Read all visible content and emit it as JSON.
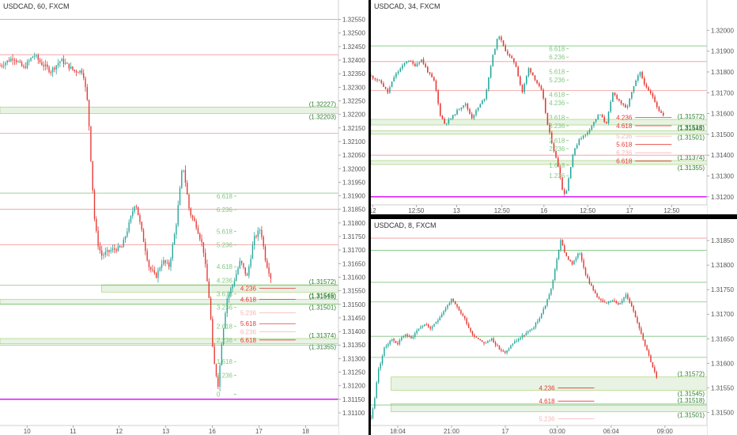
{
  "colors": {
    "up": "#26a69a",
    "down": "#e53935",
    "support_line": "#7cc47f",
    "resistance_line": "#ef9a9a",
    "zone_fill": "#e8f3e4",
    "zone_border": "#9ccc65",
    "magenta": "#d500f9",
    "fib_green": "#7fc97f",
    "fib_red": "#e53935",
    "fib_pink": "#f4b6b6",
    "zone_label": "#2e7d32"
  },
  "chart_data": [
    {
      "id": "p1",
      "type": "candlestick",
      "title": "USDCAD, 60, FXCM",
      "ylim": [
        1.31065,
        1.32575
      ],
      "y_ticks": [
        "1.32550",
        "1.32500",
        "1.32450",
        "1.32400",
        "1.32350",
        "1.32300",
        "1.32250",
        "1.32200",
        "1.32150",
        "1.32100",
        "1.32050",
        "1.32000",
        "1.31950",
        "1.31900",
        "1.31850",
        "1.31800",
        "1.31750",
        "1.31700",
        "1.31650",
        "1.31600",
        "1.31550",
        "1.31500",
        "1.31450",
        "1.31400",
        "1.31350",
        "1.31300",
        "1.31250",
        "1.31200",
        "1.31150",
        "1.31100"
      ],
      "x_ticks": [
        {
          "label": "10",
          "pos": 0.08
        },
        {
          "label": "11",
          "pos": 0.216
        },
        {
          "label": "12",
          "pos": 0.352
        },
        {
          "label": "13",
          "pos": 0.49
        },
        {
          "label": "16",
          "pos": 0.627
        },
        {
          "label": "17",
          "pos": 0.765
        },
        {
          "label": "18",
          "pos": 0.903
        }
      ],
      "hlines": [
        {
          "y": 1.3255,
          "kind": "resistance"
        },
        {
          "y": 1.3242,
          "kind": "resistance"
        },
        {
          "y": 1.3213,
          "kind": "resistance"
        },
        {
          "y": 1.3191,
          "kind": "support"
        },
        {
          "y": 1.3185,
          "kind": "resistance"
        },
        {
          "y": 1.3172,
          "kind": "resistance"
        },
        {
          "y": 1.3157,
          "kind": "support"
        },
        {
          "y": 1.315,
          "kind": "support"
        },
        {
          "y": 1.3135,
          "kind": "support"
        },
        {
          "y": 1.3115,
          "kind": "magenta"
        }
      ],
      "zones": [
        {
          "y1": 1.32203,
          "y2": 1.32227,
          "x_from": 0.0,
          "labels": [
            "(1.32227)",
            "(1.32203)"
          ]
        },
        {
          "y1": 1.31545,
          "y2": 1.31572,
          "x_from": 0.3,
          "labels": [
            "(1.31572)",
            "(1.31545)"
          ]
        },
        {
          "y1": 1.31501,
          "y2": 1.31518,
          "x_from": 0.0,
          "labels": [
            "(1.31518)",
            "(1.31501)"
          ]
        },
        {
          "y1": 1.31355,
          "y2": 1.31374,
          "x_from": 0.0,
          "labels": [
            "(1.31374)",
            "(1.31355)"
          ]
        }
      ],
      "fib": [
        {
          "label": "6.618",
          "y": 1.3189,
          "x": 0.64,
          "color": "green"
        },
        {
          "label": "6.236",
          "y": 1.3184,
          "x": 0.64,
          "color": "green"
        },
        {
          "label": "5.618",
          "y": 1.3176,
          "x": 0.64,
          "color": "green"
        },
        {
          "label": "5.236",
          "y": 1.3171,
          "x": 0.64,
          "color": "green"
        },
        {
          "label": "4.618",
          "y": 1.3163,
          "x": 0.64,
          "color": "green"
        },
        {
          "label": "4.236",
          "y": 1.3158,
          "x": 0.64,
          "color": "green"
        },
        {
          "label": "3.618",
          "y": 1.3153,
          "x": 0.64,
          "color": "green"
        },
        {
          "label": "3.236",
          "y": 1.3148,
          "x": 0.64,
          "color": "green"
        },
        {
          "label": "2.618",
          "y": 1.3141,
          "x": 0.64,
          "color": "green"
        },
        {
          "label": "2.236",
          "y": 1.3136,
          "x": 0.64,
          "color": "green"
        },
        {
          "label": "1.618",
          "y": 1.3128,
          "x": 0.64,
          "color": "green"
        },
        {
          "label": "1.236",
          "y": 1.3123,
          "x": 0.64,
          "color": "green"
        },
        {
          "label": "0",
          "y": 1.3116,
          "x": 0.64,
          "color": "green"
        },
        {
          "label": "4.236",
          "y": 1.3155,
          "x": 0.71,
          "color": "red"
        },
        {
          "label": "4.618",
          "y": 1.3151,
          "x": 0.71,
          "color": "red"
        },
        {
          "label": "5.236",
          "y": 1.3146,
          "x": 0.71,
          "color": "pink"
        },
        {
          "label": "5.618",
          "y": 1.3142,
          "x": 0.71,
          "color": "red"
        },
        {
          "label": "6.236",
          "y": 1.3139,
          "x": 0.71,
          "color": "pink"
        },
        {
          "label": "6.618",
          "y": 1.3136,
          "x": 0.71,
          "color": "red"
        }
      ],
      "path": [
        [
          0,
          1.3238
        ],
        [
          0.04,
          1.3241
        ],
        [
          0.07,
          1.3237
        ],
        [
          0.1,
          1.3242
        ],
        [
          0.12,
          1.3239
        ],
        [
          0.15,
          1.3236
        ],
        [
          0.18,
          1.324
        ],
        [
          0.22,
          1.3236
        ],
        [
          0.245,
          1.3236
        ],
        [
          0.26,
          1.3223
        ],
        [
          0.27,
          1.32
        ],
        [
          0.28,
          1.318
        ],
        [
          0.29,
          1.3172
        ],
        [
          0.3,
          1.3168
        ],
        [
          0.33,
          1.317
        ],
        [
          0.36,
          1.3171
        ],
        [
          0.38,
          1.3179
        ],
        [
          0.4,
          1.3188
        ],
        [
          0.42,
          1.3176
        ],
        [
          0.44,
          1.3164
        ],
        [
          0.46,
          1.316
        ],
        [
          0.48,
          1.3166
        ],
        [
          0.5,
          1.3164
        ],
        [
          0.52,
          1.3179
        ],
        [
          0.54,
          1.3202
        ],
        [
          0.56,
          1.3184
        ],
        [
          0.58,
          1.3179
        ],
        [
          0.6,
          1.3171
        ],
        [
          0.62,
          1.315
        ],
        [
          0.63,
          1.313
        ],
        [
          0.645,
          1.312
        ],
        [
          0.655,
          1.3136
        ],
        [
          0.67,
          1.3152
        ],
        [
          0.69,
          1.3158
        ],
        [
          0.71,
          1.3166
        ],
        [
          0.73,
          1.316
        ],
        [
          0.75,
          1.3174
        ],
        [
          0.77,
          1.3178
        ],
        [
          0.785,
          1.3166
        ],
        [
          0.8,
          1.316
        ]
      ]
    },
    {
      "id": "p2",
      "type": "candlestick",
      "title": "USDCAD, 34, FXCM",
      "ylim": [
        1.31165,
        1.32085
      ],
      "y_ticks": [
        "1.32000",
        "1.31900",
        "1.31800",
        "1.31700",
        "1.31600",
        "1.31500",
        "1.31400",
        "1.31300",
        "1.31200"
      ],
      "x_ticks": [
        {
          "label": "12",
          "pos": 0.005
        },
        {
          "label": "12:50",
          "pos": 0.135
        },
        {
          "label": "13",
          "pos": 0.255
        },
        {
          "label": "12:50",
          "pos": 0.39
        },
        {
          "label": "16",
          "pos": 0.515
        },
        {
          "label": "12:50",
          "pos": 0.645
        },
        {
          "label": "17",
          "pos": 0.77
        },
        {
          "label": "12:50",
          "pos": 0.895
        }
      ],
      "hlines": [
        {
          "y": 1.31925,
          "kind": "support"
        },
        {
          "y": 1.3185,
          "kind": "resistance"
        },
        {
          "y": 1.3171,
          "kind": "resistance"
        },
        {
          "y": 1.314,
          "kind": "resistance"
        },
        {
          "y": 1.312,
          "kind": "magenta"
        }
      ],
      "zones": [
        {
          "y1": 1.31545,
          "y2": 1.31572,
          "x_from": 0.0,
          "labels": [
            "(1.31572)",
            "(1.31545)"
          ]
        },
        {
          "y1": 1.31501,
          "y2": 1.31518,
          "x_from": 0.0,
          "labels": [
            "(1.31518)",
            "(1.31501)"
          ]
        },
        {
          "y1": 1.31355,
          "y2": 1.31374,
          "x_from": 0.0,
          "labels": [
            "(1.31374)",
            "(1.31355)"
          ]
        }
      ],
      "fib": [
        {
          "label": "6.618",
          "y": 1.319,
          "x": 0.53,
          "color": "green"
        },
        {
          "label": "6.236",
          "y": 1.3186,
          "x": 0.53,
          "color": "green"
        },
        {
          "label": "5.618",
          "y": 1.3179,
          "x": 0.53,
          "color": "green"
        },
        {
          "label": "5.236",
          "y": 1.3175,
          "x": 0.53,
          "color": "green"
        },
        {
          "label": "4.618",
          "y": 1.3168,
          "x": 0.53,
          "color": "green"
        },
        {
          "label": "4.236",
          "y": 1.3164,
          "x": 0.53,
          "color": "green"
        },
        {
          "label": "3.618",
          "y": 1.3157,
          "x": 0.53,
          "color": "green"
        },
        {
          "label": "3.236",
          "y": 1.3153,
          "x": 0.53,
          "color": "green"
        },
        {
          "label": "2.618",
          "y": 1.3146,
          "x": 0.53,
          "color": "green"
        },
        {
          "label": "2.236",
          "y": 1.3142,
          "x": 0.53,
          "color": "green"
        },
        {
          "label": "1.618",
          "y": 1.3134,
          "x": 0.53,
          "color": "green"
        },
        {
          "label": "1.236",
          "y": 1.3129,
          "x": 0.53,
          "color": "green"
        },
        {
          "label": "4.236",
          "y": 1.3157,
          "x": 0.73,
          "color": "red"
        },
        {
          "label": "4.618",
          "y": 1.3153,
          "x": 0.73,
          "color": "red"
        },
        {
          "label": "5.236",
          "y": 1.3148,
          "x": 0.73,
          "color": "pink"
        },
        {
          "label": "5.618",
          "y": 1.3144,
          "x": 0.73,
          "color": "red"
        },
        {
          "label": "6.236",
          "y": 1.314,
          "x": 0.73,
          "color": "pink"
        },
        {
          "label": "6.618",
          "y": 1.3136,
          "x": 0.73,
          "color": "red"
        }
      ],
      "path": [
        [
          0,
          1.3178
        ],
        [
          0.03,
          1.3175
        ],
        [
          0.05,
          1.317
        ],
        [
          0.07,
          1.3178
        ],
        [
          0.09,
          1.3182
        ],
        [
          0.11,
          1.3186
        ],
        [
          0.13,
          1.3183
        ],
        [
          0.15,
          1.3186
        ],
        [
          0.17,
          1.318
        ],
        [
          0.19,
          1.3175
        ],
        [
          0.205,
          1.316
        ],
        [
          0.22,
          1.3155
        ],
        [
          0.24,
          1.3158
        ],
        [
          0.26,
          1.3162
        ],
        [
          0.28,
          1.3165
        ],
        [
          0.3,
          1.3158
        ],
        [
          0.32,
          1.3163
        ],
        [
          0.34,
          1.3168
        ],
        [
          0.36,
          1.3186
        ],
        [
          0.38,
          1.3198
        ],
        [
          0.395,
          1.3192
        ],
        [
          0.41,
          1.3188
        ],
        [
          0.43,
          1.3184
        ],
        [
          0.45,
          1.317
        ],
        [
          0.47,
          1.3182
        ],
        [
          0.49,
          1.3176
        ],
        [
          0.51,
          1.317
        ],
        [
          0.525,
          1.3155
        ],
        [
          0.54,
          1.3145
        ],
        [
          0.56,
          1.3133
        ],
        [
          0.57,
          1.3123
        ],
        [
          0.58,
          1.3121
        ],
        [
          0.6,
          1.314
        ],
        [
          0.62,
          1.3148
        ],
        [
          0.64,
          1.315
        ],
        [
          0.66,
          1.3155
        ],
        [
          0.68,
          1.316
        ],
        [
          0.7,
          1.3155
        ],
        [
          0.72,
          1.317
        ],
        [
          0.74,
          1.3166
        ],
        [
          0.76,
          1.3162
        ],
        [
          0.78,
          1.3172
        ],
        [
          0.8,
          1.318
        ],
        [
          0.82,
          1.3172
        ],
        [
          0.84,
          1.3168
        ],
        [
          0.855,
          1.3162
        ],
        [
          0.87,
          1.3159
        ]
      ]
    },
    {
      "id": "p3",
      "type": "candlestick",
      "title": "USDCAD, 8, FXCM",
      "ylim": [
        1.31478,
        1.31868
      ],
      "y_ticks": [
        "1.31850",
        "1.31800",
        "1.31750",
        "1.31700",
        "1.31650",
        "1.31600",
        "1.31550",
        "1.31500"
      ],
      "x_ticks": [
        {
          "label": "18:04",
          "pos": 0.08
        },
        {
          "label": "21:00",
          "pos": 0.24
        },
        {
          "label": "17",
          "pos": 0.4
        },
        {
          "label": "03:00",
          "pos": 0.555
        },
        {
          "label": "06:04",
          "pos": 0.715
        },
        {
          "label": "09:00",
          "pos": 0.875
        }
      ],
      "hlines": [
        {
          "y": 1.31855,
          "kind": "resistance"
        },
        {
          "y": 1.3183,
          "kind": "support"
        },
        {
          "y": 1.31765,
          "kind": "support"
        },
        {
          "y": 1.31725,
          "kind": "support"
        },
        {
          "y": 1.31655,
          "kind": "support"
        },
        {
          "y": 1.31612,
          "kind": "support"
        },
        {
          "y": 1.31515,
          "kind": "support"
        }
      ],
      "zones": [
        {
          "y1": 1.31545,
          "y2": 1.31572,
          "x_from": 0.06,
          "labels": [
            "(1.31572)",
            "(1.31545)"
          ]
        },
        {
          "y1": 1.31501,
          "y2": 1.31518,
          "x_from": 0.06,
          "labels": [
            "(1.31518)",
            "(1.31501)"
          ]
        }
      ],
      "fib": [
        {
          "label": "4.236",
          "y": 1.31545,
          "x": 0.5,
          "color": "red"
        },
        {
          "label": "4.618",
          "y": 1.31518,
          "x": 0.5,
          "color": "red"
        },
        {
          "label": "5.236",
          "y": 1.31482,
          "x": 0.5,
          "color": "pink"
        }
      ],
      "path": [
        [
          0,
          1.3149
        ],
        [
          0.01,
          1.3152
        ],
        [
          0.02,
          1.3158
        ],
        [
          0.04,
          1.3163
        ],
        [
          0.06,
          1.3165
        ],
        [
          0.08,
          1.3164
        ],
        [
          0.1,
          1.3166
        ],
        [
          0.12,
          1.3165
        ],
        [
          0.14,
          1.3167
        ],
        [
          0.16,
          1.3168
        ],
        [
          0.18,
          1.3167
        ],
        [
          0.2,
          1.3169
        ],
        [
          0.22,
          1.3171
        ],
        [
          0.24,
          1.3173
        ],
        [
          0.26,
          1.3171
        ],
        [
          0.28,
          1.3169
        ],
        [
          0.3,
          1.3166
        ],
        [
          0.32,
          1.3165
        ],
        [
          0.34,
          1.3164
        ],
        [
          0.36,
          1.3165
        ],
        [
          0.38,
          1.3163
        ],
        [
          0.4,
          1.3162
        ],
        [
          0.42,
          1.3164
        ],
        [
          0.44,
          1.3165
        ],
        [
          0.46,
          1.3166
        ],
        [
          0.48,
          1.3167
        ],
        [
          0.5,
          1.3169
        ],
        [
          0.52,
          1.3172
        ],
        [
          0.54,
          1.3176
        ],
        [
          0.555,
          1.3182
        ],
        [
          0.565,
          1.3185
        ],
        [
          0.58,
          1.3182
        ],
        [
          0.6,
          1.318
        ],
        [
          0.62,
          1.3183
        ],
        [
          0.64,
          1.3178
        ],
        [
          0.66,
          1.3175
        ],
        [
          0.68,
          1.3173
        ],
        [
          0.7,
          1.3172
        ],
        [
          0.72,
          1.3173
        ],
        [
          0.74,
          1.3172
        ],
        [
          0.76,
          1.3174
        ],
        [
          0.78,
          1.3171
        ],
        [
          0.8,
          1.3167
        ],
        [
          0.82,
          1.3163
        ],
        [
          0.835,
          1.316
        ],
        [
          0.85,
          1.3157
        ]
      ]
    }
  ]
}
